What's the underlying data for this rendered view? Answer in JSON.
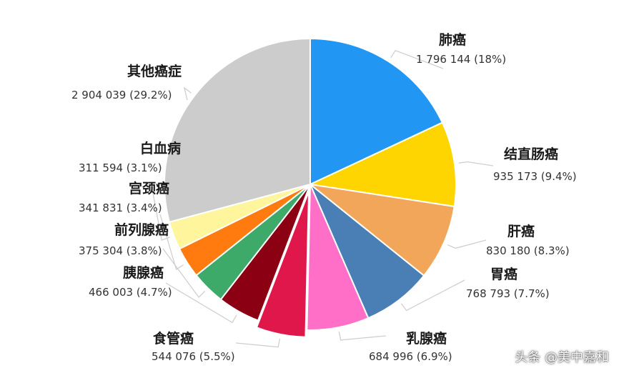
{
  "chart_data": {
    "type": "pie",
    "slices": [
      {
        "label": "肺癌",
        "value": 1796144,
        "value_text": "1 796 144 (18%)",
        "percent": 18.0,
        "color": "#2196F3"
      },
      {
        "label": "结直肠癌",
        "value": 935173,
        "value_text": "935 173 (9.4%)",
        "percent": 9.4,
        "color": "#FFD500"
      },
      {
        "label": "肝癌",
        "value": 830180,
        "value_text": "830 180 (8.3%)",
        "percent": 8.3,
        "color": "#F2A65A"
      },
      {
        "label": "胃癌",
        "value": 768793,
        "value_text": "768 793 (7.7%)",
        "percent": 7.7,
        "color": "#4A7FB5"
      },
      {
        "label": "乳腺癌",
        "value": 684996,
        "value_text": "684 996 (6.9%)",
        "percent": 6.9,
        "color": "#FF6EC7"
      },
      {
        "label": "食管癌",
        "value": 544076,
        "value_text": "544 076 (5.5%)",
        "percent": 5.5,
        "color": "#E0174A"
      },
      {
        "label": "胰腺癌",
        "value": 466003,
        "value_text": "466 003 (4.7%)",
        "percent": 4.7,
        "color": "#8B0012"
      },
      {
        "label": "前列腺癌",
        "value": 375304,
        "value_text": "375 304 (3.8%)",
        "percent": 3.8,
        "color": "#3DAA6A"
      },
      {
        "label": "宫颈癌",
        "value": 341831,
        "value_text": "341 831 (3.4%)",
        "percent": 3.4,
        "color": "#FF7A0F"
      },
      {
        "label": "白血病",
        "value": 311594,
        "value_text": "311 594 (3.1%)",
        "percent": 3.1,
        "color": "#FFF59D"
      },
      {
        "label": "其他癌症",
        "value": 2904039,
        "value_text": "2 904 039 (29.2%)",
        "percent": 29.2,
        "color": "#CCCCCC"
      }
    ],
    "exploded_slice": "食管癌"
  },
  "watermark": "头条 @美中嘉和"
}
